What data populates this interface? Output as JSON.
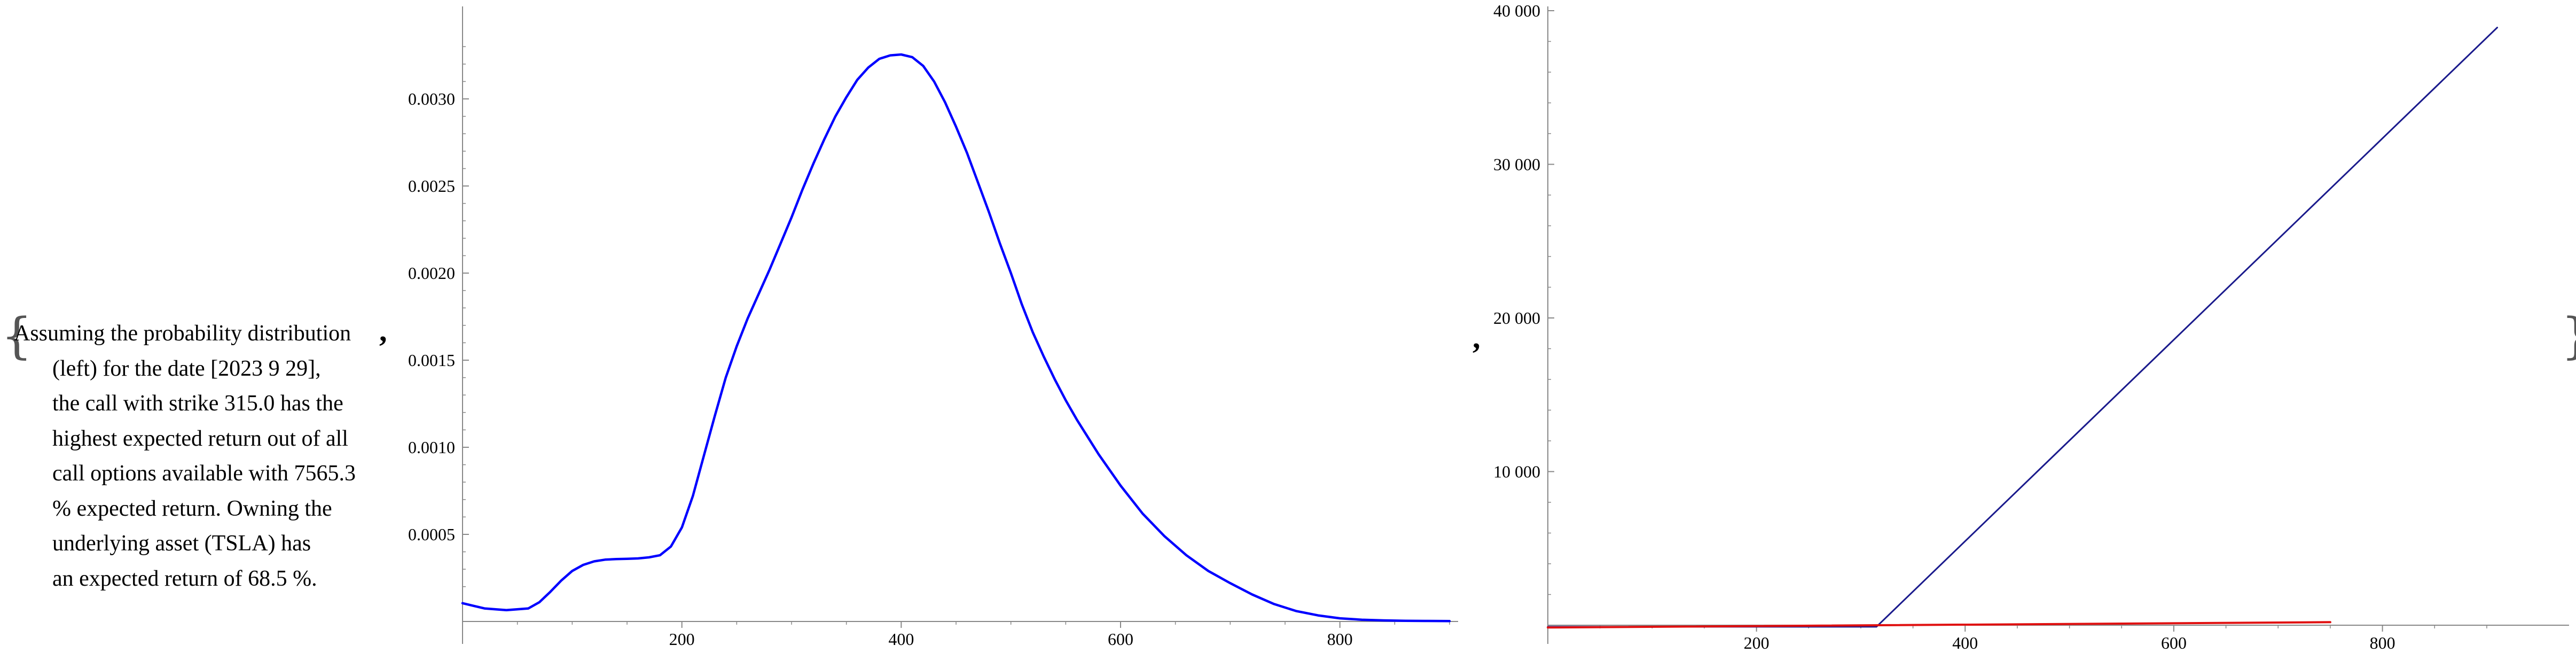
{
  "output_cell": {
    "open_brace": "{",
    "close_brace": "}",
    "separator_1": ",",
    "separator_2": ",",
    "caption_lines": [
      "Assuming the probability distribution",
      "(left) for the date [2023 9 29],",
      "the call with strike 315.0 has the",
      "highest expected return out of all",
      "call options available with 7565.3",
      "% expected return. Owning the",
      "underlying asset (TSLA) has",
      "an expected return of 68.5 %."
    ]
  },
  "colors": {
    "density": "#0000ff",
    "call_payoff": "#1a1a8c",
    "asset_payoff": "#e01010",
    "axis": "#888888"
  },
  "chart_data": [
    {
      "type": "line",
      "title": "",
      "xlabel": "",
      "ylabel": "",
      "xlim": [
        0,
        900
      ],
      "ylim": [
        0,
        0.00335
      ],
      "x_ticks": [
        200,
        400,
        600,
        800
      ],
      "x_tick_labels": [
        "200",
        "400",
        "600",
        "800"
      ],
      "y_ticks": [
        0.0005,
        0.001,
        0.0015,
        0.002,
        0.0025,
        0.003
      ],
      "y_tick_labels": [
        "0.0005",
        "0.0010",
        "0.0015",
        "0.0020",
        "0.0025",
        "0.0030"
      ],
      "grid": false,
      "series": [
        {
          "x": [
            0,
            20,
            40,
            60,
            70,
            80,
            90,
            100,
            110,
            120,
            130,
            140,
            150,
            160,
            170,
            180,
            190,
            200,
            210,
            220,
            230,
            240,
            250,
            260,
            270,
            280,
            290,
            300,
            310,
            320,
            330,
            340,
            350,
            360,
            370,
            380,
            390,
            400,
            410,
            420,
            430,
            440,
            450,
            460,
            470,
            480,
            490,
            500,
            510,
            520,
            530,
            540,
            550,
            560,
            570,
            580,
            590,
            600,
            620,
            640,
            660,
            680,
            700,
            720,
            740,
            760,
            780,
            800,
            820,
            840,
            860,
            880,
            900
          ],
          "y": [
            0.000105,
            7.5e-05,
            6.5e-05,
            7.5e-05,
            0.00011,
            0.00017,
            0.000235,
            0.00029,
            0.000325,
            0.000345,
            0.000355,
            0.000358,
            0.00036,
            0.000362,
            0.000368,
            0.00038,
            0.00043,
            0.00054,
            0.00072,
            0.00095,
            0.00118,
            0.0014,
            0.00158,
            0.00174,
            0.00188,
            0.00202,
            0.00217,
            0.00232,
            0.00248,
            0.00263,
            0.00277,
            0.0029,
            0.00301,
            0.00311,
            0.00318,
            0.00323,
            0.00325,
            0.003255,
            0.00324,
            0.00319,
            0.0031,
            0.00298,
            0.00284,
            0.00269,
            0.00252,
            0.00235,
            0.00217,
            0.002,
            0.00182,
            0.00166,
            0.00152,
            0.00139,
            0.00127,
            0.00116,
            0.00106,
            0.00096,
            0.00087,
            0.00078,
            0.00062,
            0.00049,
            0.00038,
            0.00029,
            0.00022,
            0.000155,
            0.0001,
            6e-05,
            3.5e-05,
            1.8e-05,
            1e-05,
            6e-06,
            4e-06,
            3e-06,
            2e-06
          ]
        }
      ]
    },
    {
      "type": "line",
      "title": "",
      "xlabel": "",
      "ylabel": "",
      "xlim": [
        0,
        920
      ],
      "ylim": [
        0,
        40000
      ],
      "x_ticks": [
        200,
        400,
        600,
        800
      ],
      "x_tick_labels": [
        "200",
        "400",
        "600",
        "800"
      ],
      "y_ticks": [
        10000,
        20000,
        30000,
        40000
      ],
      "y_tick_labels": [
        "10 000",
        "20 000",
        "30 000",
        "40 000"
      ],
      "grid": false,
      "series": [
        {
          "x": [
            0,
            315,
            910
          ],
          "y": [
            -100,
            -100,
            38900
          ]
        },
        {
          "x": [
            0,
            750
          ],
          "y": [
            -150,
            200
          ]
        }
      ]
    }
  ]
}
